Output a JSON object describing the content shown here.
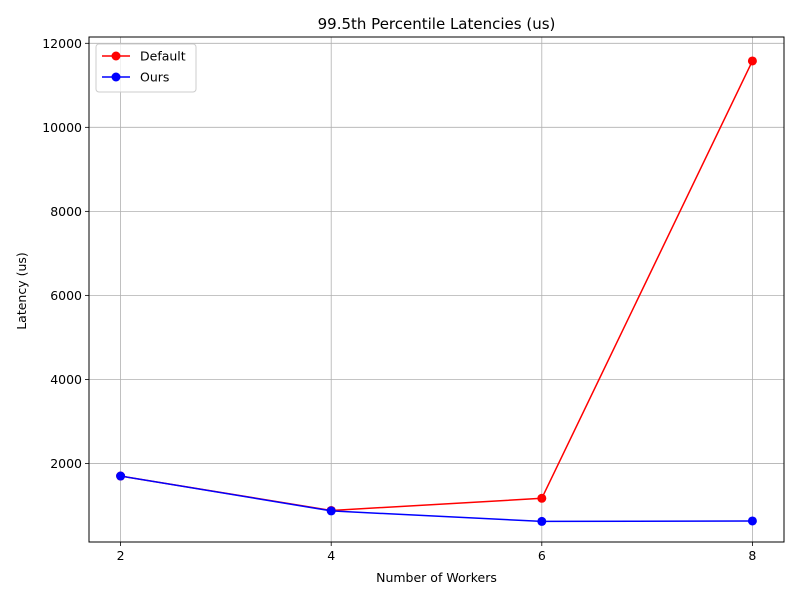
{
  "chart_data": {
    "type": "line",
    "title": "99.5th Percentile Latencies (us)",
    "xlabel": "Number of Workers",
    "ylabel": "Latency (us)",
    "x": [
      2,
      4,
      6,
      8
    ],
    "xticks": [
      "2",
      "4",
      "6",
      "8"
    ],
    "yticks": [
      "2000",
      "4000",
      "6000",
      "8000",
      "10000",
      "12000"
    ],
    "xlim": [
      1.7,
      8.3
    ],
    "ylim": [
      130,
      12150
    ],
    "grid": true,
    "legend_position": "top-left",
    "series": [
      {
        "name": "Default",
        "color": "#ff0000",
        "marker": "circle",
        "values": [
          1700,
          880,
          1170,
          11580
        ]
      },
      {
        "name": "Ours",
        "color": "#0000ff",
        "marker": "circle",
        "values": [
          1700,
          870,
          620,
          630
        ]
      }
    ]
  }
}
